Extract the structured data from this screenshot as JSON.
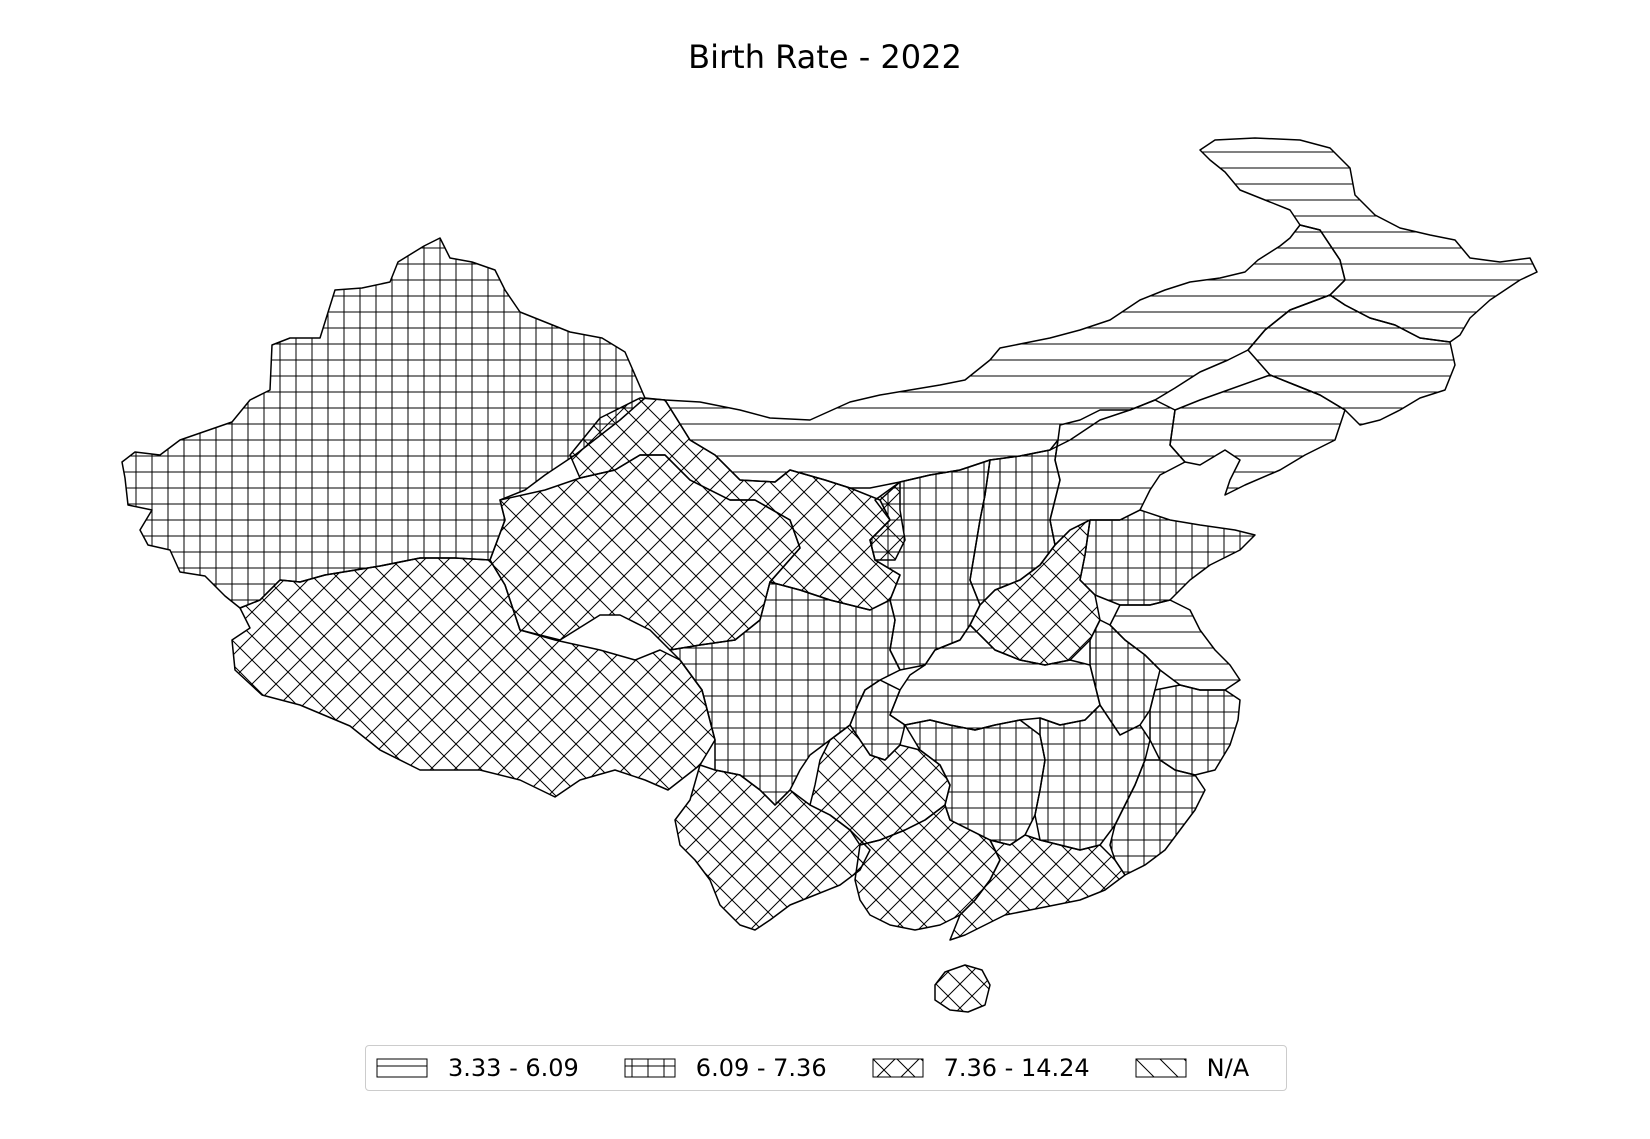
{
  "title": "Birth Rate - 2022",
  "legend": {
    "items": [
      {
        "label": "3.33 - 6.09",
        "pattern": "horiz"
      },
      {
        "label": "6.09 - 7.36",
        "pattern": "grid"
      },
      {
        "label": "7.36 - 14.24",
        "pattern": "diag"
      },
      {
        "label": "N/A",
        "pattern": "na"
      }
    ]
  },
  "colors": {
    "stroke": "#000000",
    "background": "#ffffff",
    "legend_border": "#cccccc"
  }
}
